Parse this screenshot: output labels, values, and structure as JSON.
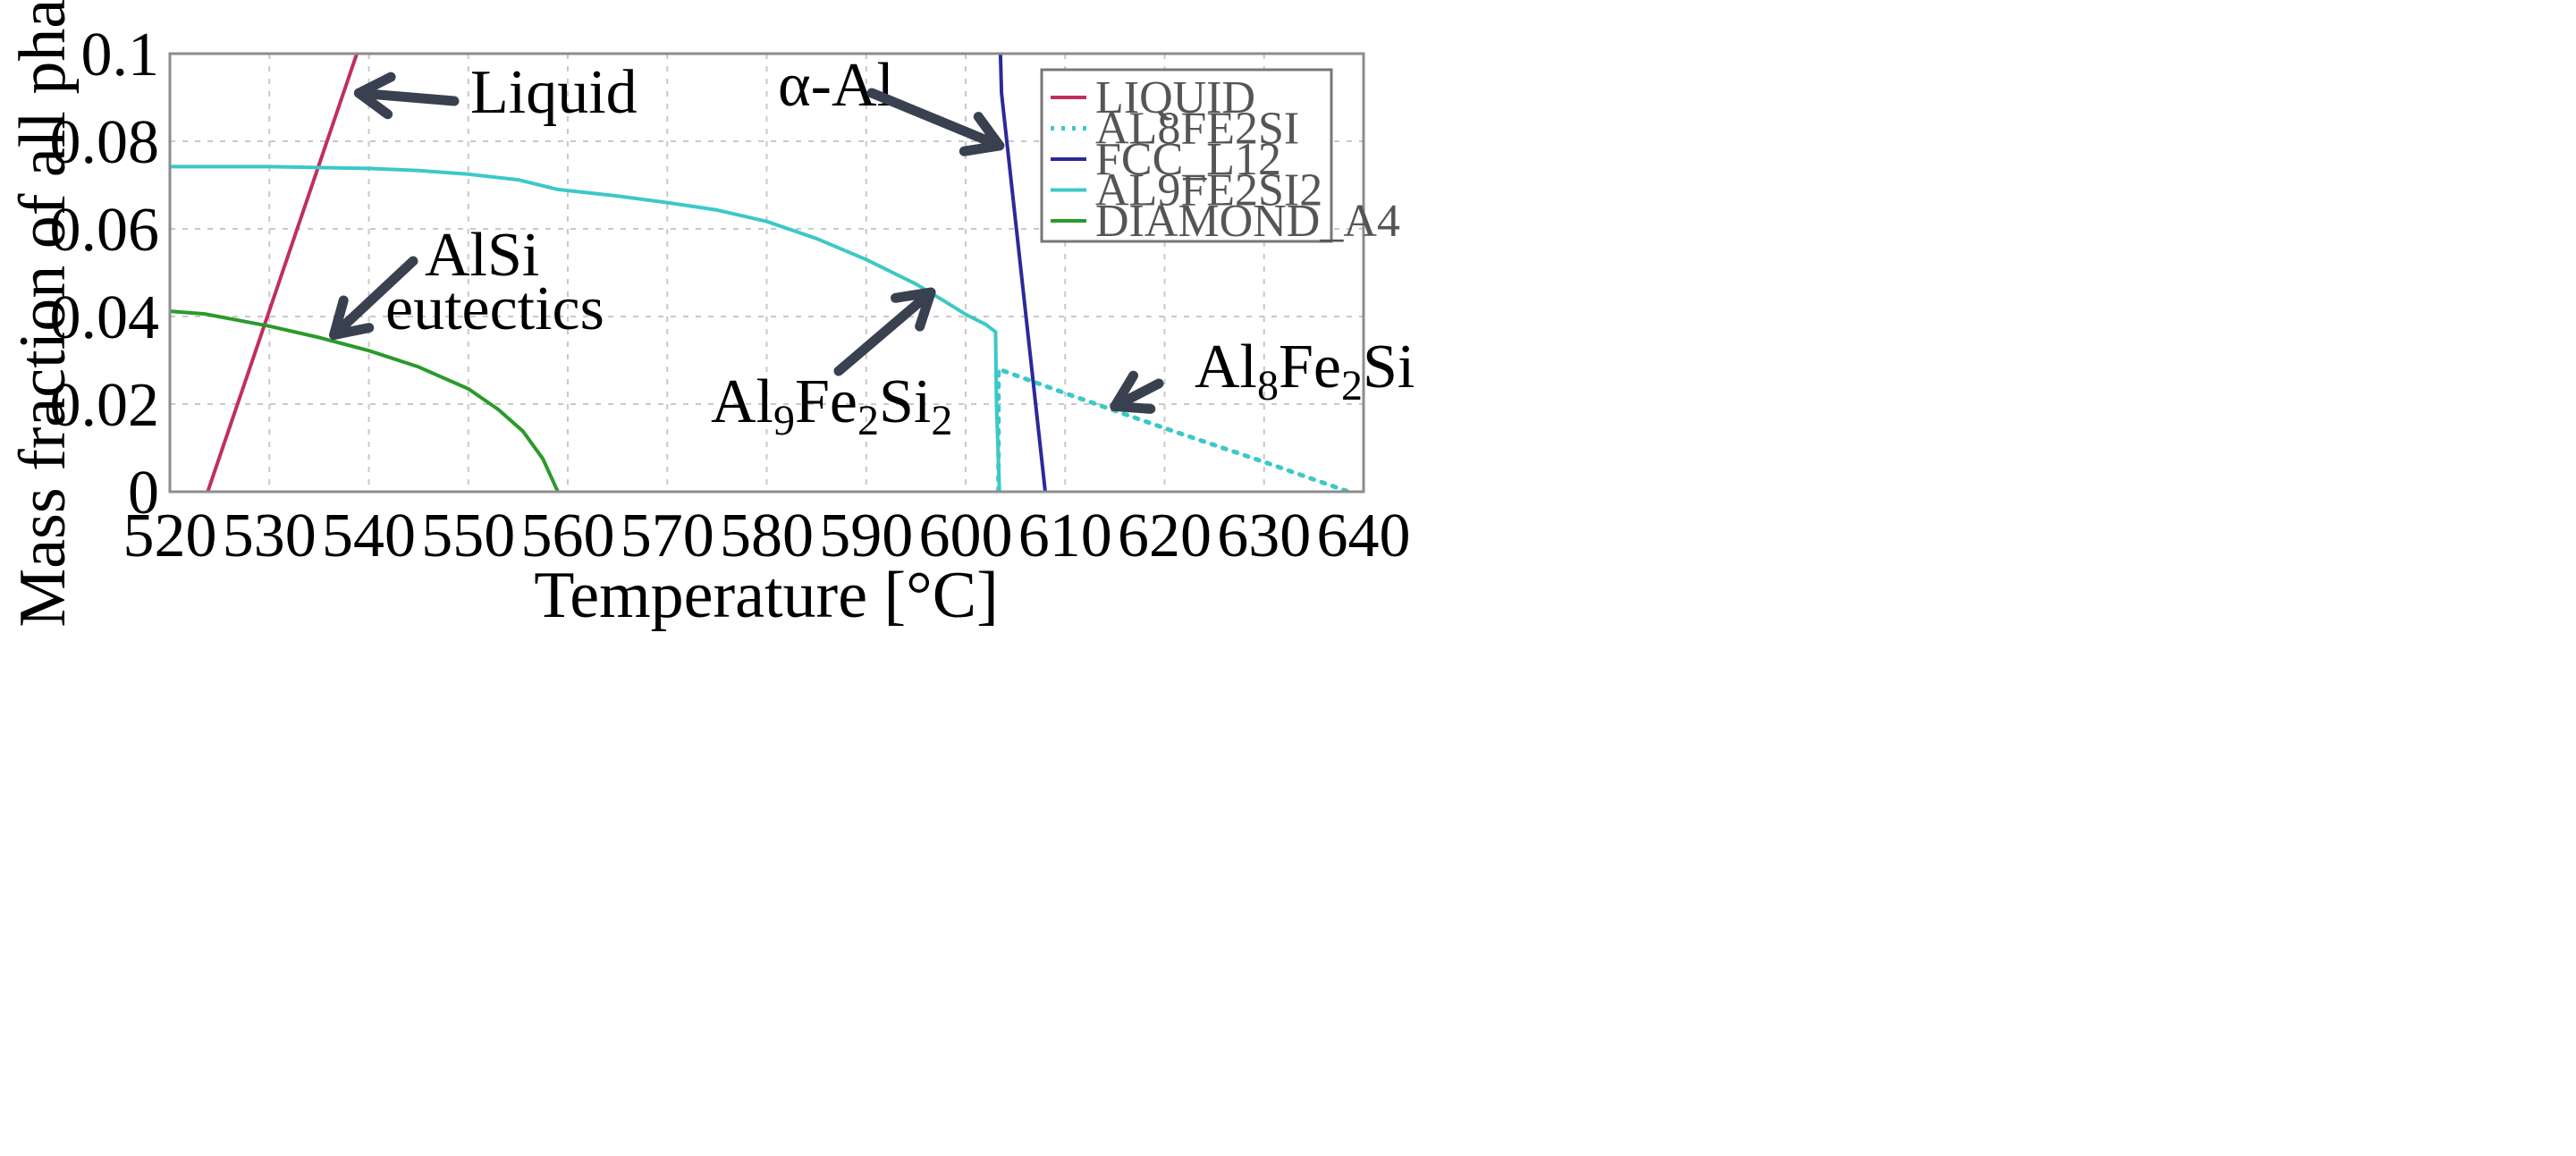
{
  "chart_data": {
    "type": "line",
    "xlabel": "Temperature [°C]",
    "ylabel": "Mass fraction of all phases",
    "xlim": [
      520,
      640
    ],
    "ylim": [
      0,
      0.1
    ],
    "x_ticks": [
      "520",
      "530",
      "540",
      "550",
      "560",
      "570",
      "580",
      "590",
      "600",
      "610",
      "620",
      "630",
      "640"
    ],
    "y_ticks": [
      "0",
      "0.02",
      "0.04",
      "0.06",
      "0.08",
      "0.1"
    ],
    "grid": true,
    "legend_position": "top-right",
    "series": [
      {
        "name": "LIQUID",
        "color": "#c0305a",
        "style": "solid",
        "points": [
          [
            523.8,
            0
          ],
          [
            538.8,
            0.1
          ]
        ]
      },
      {
        "name": "AL8FE2SI",
        "color": "#3cc8c8",
        "style": "dotted",
        "points": [
          [
            603.3,
            0
          ],
          [
            603.3,
            0.028
          ],
          [
            610,
            0.0225
          ],
          [
            620,
            0.0145
          ],
          [
            630,
            0.0068
          ],
          [
            638.5,
            0
          ]
        ]
      },
      {
        "name": "FCC_L12",
        "color": "#2a2a9a",
        "style": "solid",
        "points": [
          [
            603.5,
            0.1
          ],
          [
            603.6,
            0.091
          ],
          [
            608,
            0
          ]
        ]
      },
      {
        "name": "AL9FE2SI2",
        "color": "#3cc8c8",
        "style": "solid",
        "points": [
          [
            520,
            0.0742
          ],
          [
            530,
            0.0742
          ],
          [
            540,
            0.0738
          ],
          [
            545,
            0.0733
          ],
          [
            550,
            0.0725
          ],
          [
            555,
            0.0712
          ],
          [
            559,
            0.069
          ],
          [
            565,
            0.0675
          ],
          [
            570,
            0.066
          ],
          [
            575,
            0.0643
          ],
          [
            580,
            0.0617
          ],
          [
            585,
            0.0578
          ],
          [
            590,
            0.053
          ],
          [
            595,
            0.0474
          ],
          [
            598,
            0.0433
          ],
          [
            600,
            0.0405
          ],
          [
            602,
            0.0382
          ],
          [
            603,
            0.0365
          ],
          [
            603.1,
            0.02
          ],
          [
            603.4,
            0
          ]
        ]
      },
      {
        "name": "DIAMOND_A4",
        "color": "#2a9a2a",
        "style": "solid",
        "points": [
          [
            520,
            0.0412
          ],
          [
            523.5,
            0.0406
          ],
          [
            530,
            0.0378
          ],
          [
            535,
            0.0352
          ],
          [
            540,
            0.0322
          ],
          [
            545,
            0.0285
          ],
          [
            550,
            0.0235
          ],
          [
            553,
            0.0188
          ],
          [
            555.5,
            0.0138
          ],
          [
            557.5,
            0.0075
          ],
          [
            559,
            0
          ]
        ]
      }
    ],
    "annotations": [
      {
        "text": "Liquid",
        "arrow_to": [
          539,
          0.091
        ]
      },
      {
        "text": "α-Al",
        "arrow_to": [
          603.4,
          0.079
        ]
      },
      {
        "text_lines": [
          "AlSi",
          "eutectics"
        ],
        "arrow_to": [
          536.5,
          0.0358
        ]
      },
      {
        "text": "Al9Fe2Si2",
        "arrow_to": [
          596.5,
          0.0455
        ]
      },
      {
        "text": "Al8Fe2Si",
        "arrow_to": [
          615,
          0.0195
        ]
      }
    ]
  }
}
